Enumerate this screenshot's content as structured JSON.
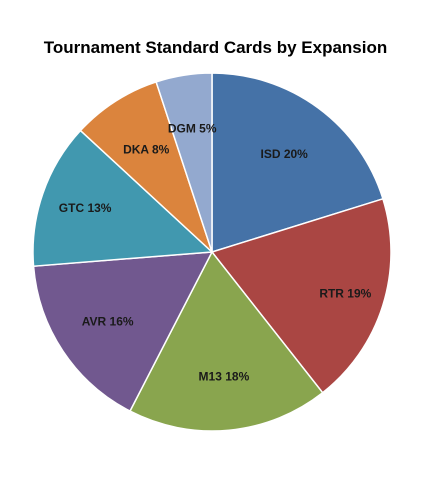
{
  "chart_data": {
    "type": "pie",
    "title": "Tournament Standard Cards by Expansion",
    "categories": [
      "ISD",
      "RTR",
      "M13",
      "AVR",
      "GTC",
      "DKA",
      "DGM"
    ],
    "values": [
      20,
      19,
      18,
      16,
      13,
      8,
      5
    ],
    "labels": [
      "ISD 20%",
      "RTR 19%",
      "M13 18%",
      "AVR 16%",
      "GTC 13%",
      "DKA 8%",
      "DGM 5%"
    ],
    "colors": [
      "#4572a7",
      "#aa4643",
      "#89a54e",
      "#71588f",
      "#4198af",
      "#db843d",
      "#93a9cf"
    ],
    "legend": "none"
  }
}
